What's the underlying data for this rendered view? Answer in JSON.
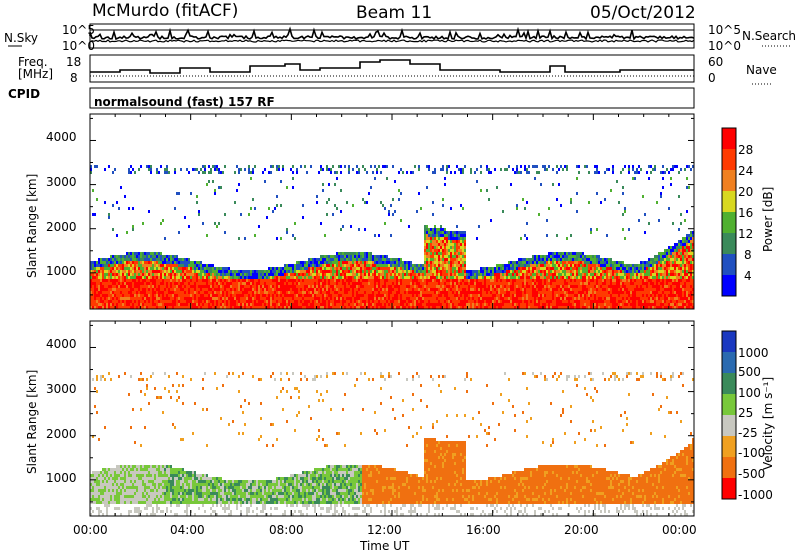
{
  "header": {
    "station": "McMurdo (fitACF)",
    "beam": "Beam 11",
    "date": "05/Oct/2012"
  },
  "noise_panel": {
    "left_label": "N.Sky",
    "right_label": "N.Search",
    "left_ticks": [
      "10^5",
      "10^0"
    ],
    "right_ticks": [
      "10^5",
      "10^0"
    ]
  },
  "freq_panel": {
    "left_label_top": "Freq.",
    "left_label_bottom": "[MHz]",
    "left_ticks": [
      "18",
      "8"
    ],
    "right_label": "Nave",
    "right_ticks": [
      "60",
      "0"
    ]
  },
  "cpid": {
    "label": "CPID",
    "value": "normalsound (fast) 157 RF"
  },
  "chart_data": [
    {
      "type": "heatmap",
      "name": "power",
      "ylabel": "Slant Range [km]",
      "y_ticks": [
        "1000",
        "2000",
        "3000",
        "4000"
      ],
      "ylim": [
        180,
        4600
      ],
      "colorbar_label": "Power [dB]",
      "colorbar_ticks": [
        "4",
        "8",
        "12",
        "16",
        "20",
        "24",
        "28"
      ],
      "colors": [
        "#0000ff",
        "#2050c0",
        "#3a8a5a",
        "#50b030",
        "#d8d820",
        "#f08020",
        "#ff3a00",
        "#ff0000"
      ]
    },
    {
      "type": "heatmap",
      "name": "velocity",
      "ylabel": "Slant Range [km]",
      "y_ticks": [
        "1000",
        "2000",
        "3000",
        "4000"
      ],
      "ylim": [
        180,
        4600
      ],
      "colorbar_label": "Velocity [m s⁻¹]",
      "colorbar_ticks": [
        "1000",
        "500",
        "100",
        "25",
        "-25",
        "-100",
        "-500",
        "-1000"
      ],
      "colors": [
        "#1a38c0",
        "#2a6ab0",
        "#3a8a5a",
        "#78c83a",
        "#c8c8c0",
        "#f0a020",
        "#f07010",
        "#ff0000"
      ]
    }
  ],
  "x_axis": {
    "ticks": [
      "00:00",
      "04:00",
      "08:00",
      "12:00",
      "16:00",
      "20:00",
      "00:00"
    ],
    "label": "Time UT"
  }
}
